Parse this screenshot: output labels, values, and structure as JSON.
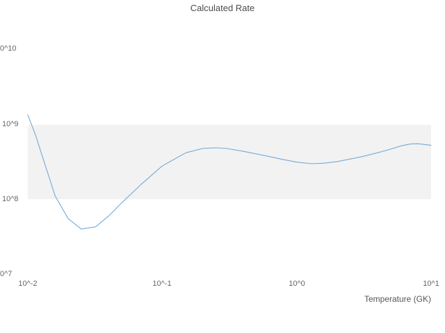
{
  "title": "Calculated Rate",
  "axes": {
    "x_label": "Temperature (GK)",
    "x_ticks": [
      "10^-2",
      "10^-1",
      "10^0",
      "10^1"
    ],
    "y_ticks": [
      "0^10",
      "10^9",
      "10^8",
      "0^7"
    ]
  },
  "chart_data": {
    "type": "line",
    "title": "Calculated Rate",
    "xlabel": "Temperature (GK)",
    "ylabel": "",
    "x_scale": "log",
    "y_scale": "log",
    "xlim": [
      0.01,
      10
    ],
    "ylim": [
      10000000,
      10000000000
    ],
    "grid": false,
    "legend": "none",
    "band": {
      "from": 100000000,
      "to": 1000000000,
      "color": "#f2f2f2"
    },
    "line_color": "#74a9d8",
    "x": [
      0.01,
      0.0115,
      0.013,
      0.016,
      0.02,
      0.025,
      0.032,
      0.04,
      0.05,
      0.07,
      0.1,
      0.15,
      0.2,
      0.25,
      0.3,
      0.4,
      0.6,
      0.8,
      1.0,
      1.3,
      1.6,
      2.0,
      3.0,
      4.0,
      5.0,
      6.0,
      7.0,
      8.0,
      10.0
    ],
    "y": [
      1350000000,
      700000000,
      350000000,
      110000000,
      55000000,
      40000000,
      43000000,
      60000000,
      90000000,
      160000000,
      280000000,
      420000000,
      480000000,
      490000000,
      480000000,
      440000000,
      380000000,
      340000000,
      315000000,
      300000000,
      305000000,
      320000000,
      370000000,
      420000000,
      470000000,
      520000000,
      550000000,
      555000000,
      530000000
    ]
  }
}
